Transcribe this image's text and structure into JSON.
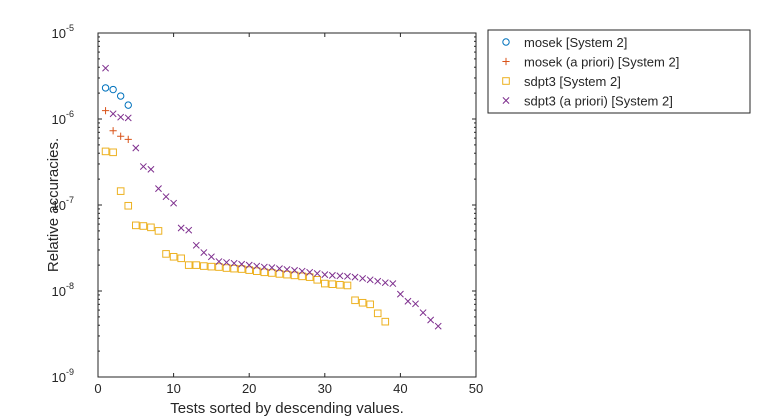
{
  "chart_data": {
    "type": "scatter",
    "title": "",
    "xlabel": "Tests sorted by descending values.",
    "ylabel": "Relative accuracies.",
    "xlim": [
      0,
      50
    ],
    "ylim": [
      1e-09,
      1e-05
    ],
    "yscale": "log",
    "grid": false,
    "legend_position": "outside-top-right",
    "x_ticks": [
      0,
      10,
      20,
      30,
      40,
      50
    ],
    "y_ticks": [
      {
        "base": "10",
        "exp": "-9",
        "value": 1e-09
      },
      {
        "base": "10",
        "exp": "-8",
        "value": 1e-08
      },
      {
        "base": "10",
        "exp": "-7",
        "value": 1e-07
      },
      {
        "base": "10",
        "exp": "-6",
        "value": 1e-06
      },
      {
        "base": "10",
        "exp": "-5",
        "value": 1e-05
      }
    ],
    "series": [
      {
        "name": "mosek [System 2]",
        "marker": "circle",
        "color": "#0072bd",
        "x": [
          1,
          2,
          3,
          4
        ],
        "y": [
          2.3e-06,
          2.2e-06,
          1.85e-06,
          1.45e-06
        ]
      },
      {
        "name": "mosek (a priori) [System 2]",
        "marker": "plus",
        "color": "#d95319",
        "x": [
          1,
          2,
          3,
          4
        ],
        "y": [
          1.25e-06,
          7.3e-07,
          6.3e-07,
          5.8e-07
        ]
      },
      {
        "name": "sdpt3 [System 2]",
        "marker": "square",
        "color": "#edb120",
        "x": [
          1,
          2,
          3,
          4,
          5,
          6,
          7,
          8,
          9,
          10,
          11,
          12,
          13,
          14,
          15,
          16,
          17,
          18,
          19,
          20,
          21,
          22,
          23,
          24,
          25,
          26,
          27,
          28,
          29,
          30,
          31,
          32,
          33,
          34,
          35,
          36,
          37,
          38
        ],
        "y": [
          4.2e-07,
          4.1e-07,
          1.45e-07,
          9.8e-08,
          5.8e-08,
          5.7e-08,
          5.5e-08,
          5e-08,
          2.7e-08,
          2.5e-08,
          2.4e-08,
          2e-08,
          2e-08,
          1.95e-08,
          1.92e-08,
          1.9e-08,
          1.85e-08,
          1.82e-08,
          1.8e-08,
          1.75e-08,
          1.7e-08,
          1.65e-08,
          1.62e-08,
          1.58e-08,
          1.55e-08,
          1.52e-08,
          1.48e-08,
          1.45e-08,
          1.35e-08,
          1.22e-08,
          1.2e-08,
          1.18e-08,
          1.16e-08,
          7.8e-09,
          7.3e-09,
          7e-09,
          5.5e-09,
          4.4e-09
        ]
      },
      {
        "name": "sdpt3 (a priori) [System 2]",
        "marker": "x",
        "color": "#7e2f8e",
        "x": [
          1,
          2,
          3,
          4,
          5,
          6,
          7,
          8,
          9,
          10,
          11,
          12,
          13,
          14,
          15,
          16,
          17,
          18,
          19,
          20,
          21,
          22,
          23,
          24,
          25,
          26,
          27,
          28,
          29,
          30,
          31,
          32,
          33,
          34,
          35,
          36,
          37,
          38,
          39,
          40,
          41,
          42,
          43,
          44,
          45
        ],
        "y": [
          3.9e-06,
          1.15e-06,
          1.05e-06,
          1.03e-06,
          4.6e-07,
          2.8e-07,
          2.6e-07,
          1.55e-07,
          1.25e-07,
          1.05e-07,
          5.4e-08,
          5.1e-08,
          3.4e-08,
          2.8e-08,
          2.5e-08,
          2.2e-08,
          2.15e-08,
          2.1e-08,
          2.05e-08,
          2e-08,
          1.95e-08,
          1.9e-08,
          1.87e-08,
          1.82e-08,
          1.78e-08,
          1.74e-08,
          1.7e-08,
          1.65e-08,
          1.6e-08,
          1.55e-08,
          1.52e-08,
          1.5e-08,
          1.48e-08,
          1.45e-08,
          1.4e-08,
          1.35e-08,
          1.3e-08,
          1.25e-08,
          1.22e-08,
          9.2e-09,
          7.6e-09,
          7.1e-09,
          5.6e-09,
          4.6e-09,
          3.9e-09
        ]
      }
    ]
  }
}
